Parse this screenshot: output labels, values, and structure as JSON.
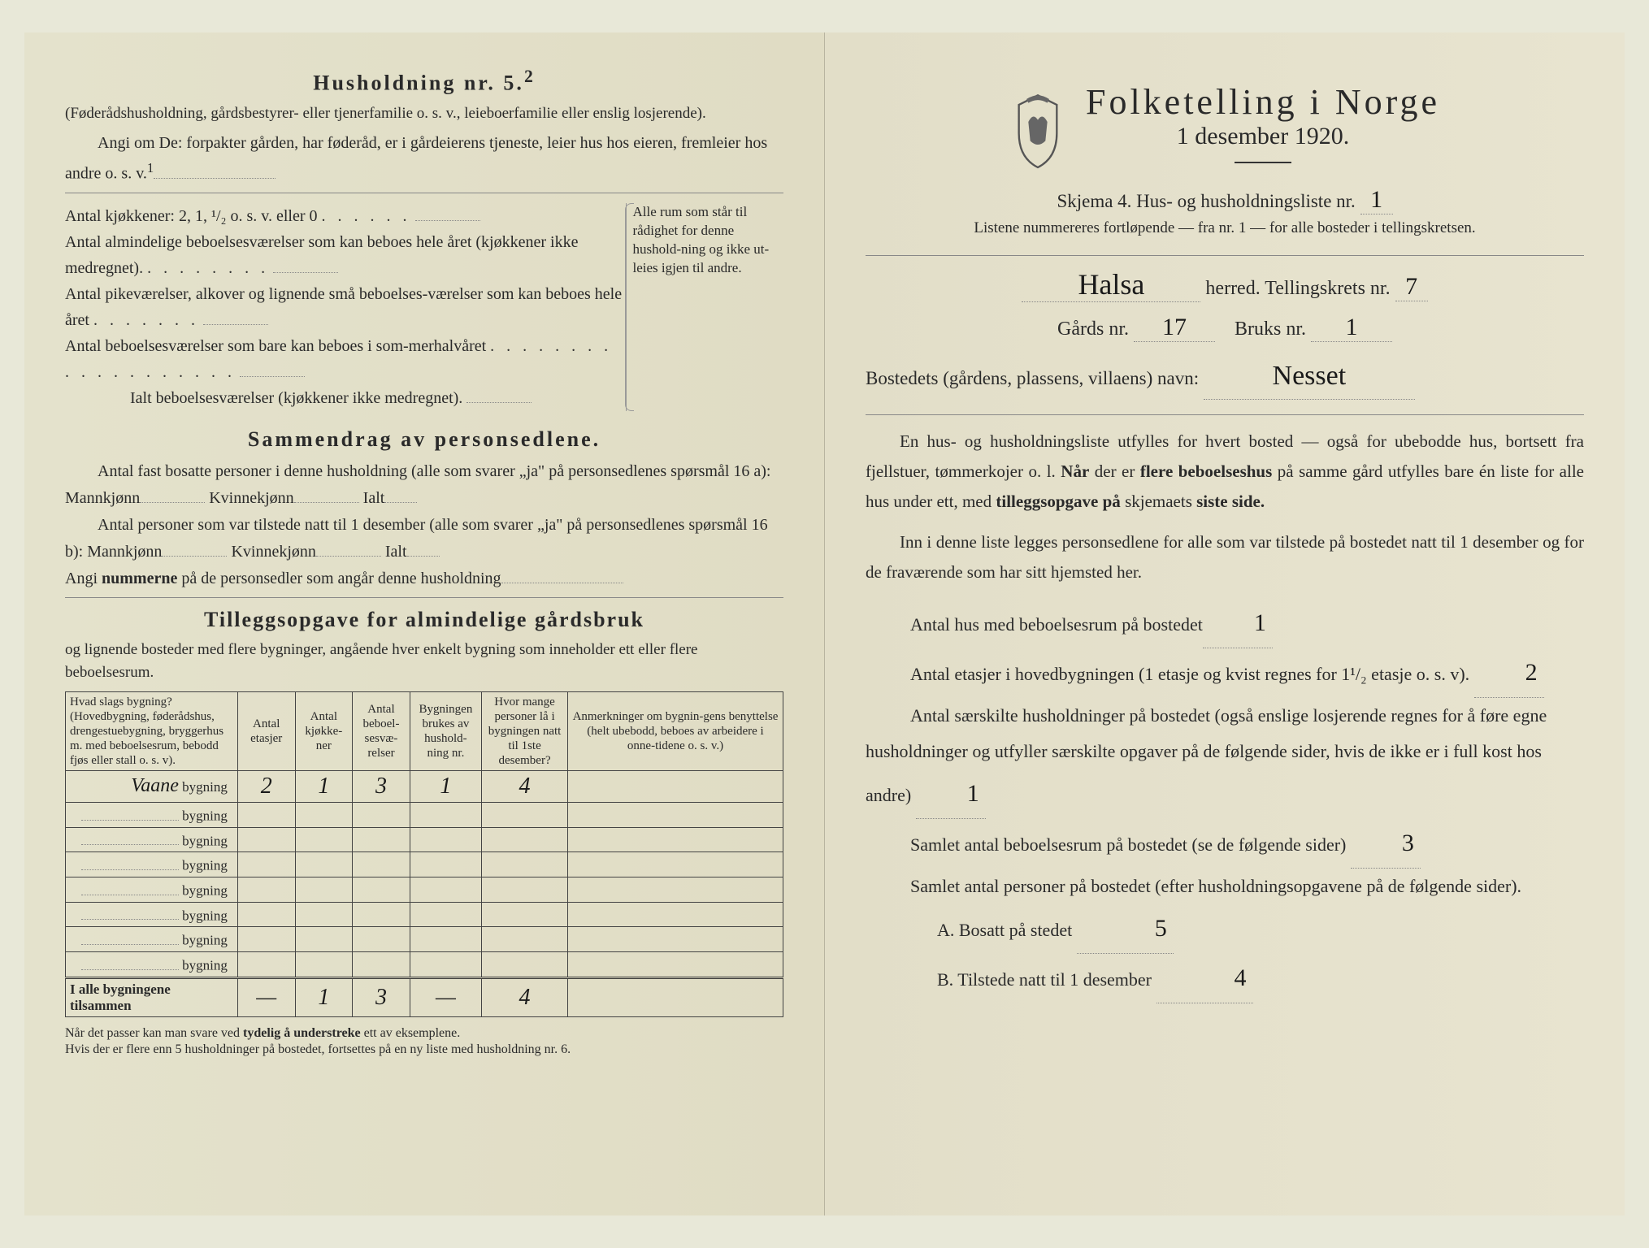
{
  "left": {
    "heading5": "Husholdning nr. 5.",
    "heading5_sup": "2",
    "note5": "(Føderådshusholdning, gårdsbestyrer- eller tjenerfamilie o. s. v., leieboerfamilie eller enslig losjerende).",
    "angi": "Angi om De:  forpakter gården, har føderåd, er i gårdeierens tjeneste, leier hus hos eieren, fremleier hos andre o. s. v.",
    "angi_sup": "1",
    "kitchens_label": "Antal kjøkkener: 2, 1, ¹/₂ o. s. v. eller 0",
    "rooms_a": "Antal almindelige beboelsesværelser som kan beboes hele året (kjøkkener ikke medregnet).",
    "rooms_b": "Antal pikeværelser, alkover og lignende små beboelses-værelser som kan beboes hele året",
    "rooms_c": "Antal beboelsesværelser som bare kan beboes i som-merhalvåret",
    "rooms_total": "Ialt beboelsesværelser  (kjøkkener ikke medregnet).",
    "rooms_side": "Alle rum som står til rådighet for denne hushold-ning og ikke ut-leies igjen til andre.",
    "sammendrag_title": "Sammendrag av personsedlene.",
    "sammendrag_a": "Antal fast bosatte personer i denne husholdning (alle som svarer „ja\" på personsedlenes spørsmål 16 a): Mannkjønn",
    "sammendrag_kvinne": "Kvinnekjønn",
    "sammendrag_ialt": "Ialt",
    "sammendrag_b": "Antal personer som var tilstede natt til 1 desember (alle som svarer „ja\" på personsedlenes spørsmål 16 b): Mannkjønn",
    "angi_nummer": "Angi nummerne på de personsedler som angår denne husholdning",
    "tillegg_title": "Tilleggsopgave for almindelige gårdsbruk",
    "tillegg_sub": "og lignende bosteder med flere bygninger, angående hver enkelt bygning som inneholder ett eller flere beboelsesrum.",
    "table": {
      "cols": [
        "Hvad slags bygning?\n(Hovedbygning, føderådshus, drengestuebygning, bryggerhus m. med beboelsesrum, bebodd fjøs eller stall o. s. v).",
        "Antal etasjer",
        "Antal kjøkke-ner",
        "Antal beboel-sesvæ-relser",
        "Bygningen brukes av hushold-ning nr.",
        "Hvor mange personer lå i bygningen natt til 1ste desember?",
        "Anmerkninger om bygnin-gens benyttelse (helt ubebodd, beboes av arbeidere i onne-tidene o. s. v.)"
      ],
      "row1": {
        "name_hand": "Vaane",
        "suffix": "bygning",
        "etasjer": "2",
        "kjokkener": "1",
        "bebo": "3",
        "hush": "1",
        "pers": "4"
      },
      "rows_blank_suffix": "bygning",
      "sumrow_label": "I alle bygningene tilsammen",
      "sumrow": {
        "etasjer": "—",
        "kjokkener": "1",
        "bebo": "3",
        "hush": "—",
        "pers": "4"
      }
    },
    "footnote": "Når det passer kan man svare ved tydelig å understreke ett av eksemplene.\nHvis der er flere enn 5 husholdninger på bostedet, fortsettes på en ny liste med husholdning nr. 6."
  },
  "right": {
    "title": "Folketelling  i  Norge",
    "date": "1 desember 1920.",
    "skjema": "Skjema 4.   Hus- og husholdningsliste nr.",
    "skjema_val": "1",
    "listene": "Listene nummereres fortløpende — fra nr. 1 — for alle bosteder i tellingskretsen.",
    "herred_hand": "Halsa",
    "herred_label": "herred.   Tellingskrets nr.",
    "krets_val": "7",
    "gards_label": "Gårds nr.",
    "gards_val": "17",
    "bruks_label": "Bruks nr.",
    "bruks_val": "1",
    "bosted_label": "Bostedets (gårdens, plassens, villaens) navn:",
    "bosted_val": "Nesset",
    "para1": "En hus- og husholdningsliste utfylles for hvert bosted — også for ubebodde hus, bortsett fra fjellstuer, tømmerkojer o. l.  Når der er flere beboelseshus på samme gård utfylles bare én liste for alle hus under ett, med tilleggsopgave på skjemaets siste side.",
    "para2": "Inn i denne liste legges personsedlene for alle som var tilstede på bostedet natt til 1 desember og for de fraværende som har sitt hjemsted her.",
    "l1": "Antal hus med beboelsesrum på bostedet",
    "l1_val": "1",
    "l2a": "Antal etasjer i hovedbygningen (1 etasje og kvist regnes for 1¹/₂ etasje o. s. v).",
    "l2_val": "2",
    "l3": "Antal særskilte husholdninger på bostedet (også enslige losjerende regnes for å føre egne husholdninger og utfyller særskilte opgaver på de følgende sider, hvis de ikke er i full kost hos andre)",
    "l3_val": "1",
    "l4": "Samlet antal beboelsesrum på bostedet (se de følgende sider)",
    "l4_val": "3",
    "l5": "Samlet antal personer på bostedet (efter husholdningsopgavene på de følgende sider).",
    "lA": "A.  Bosatt på stedet",
    "lA_val": "5",
    "lB": "B.  Tilstede natt til 1 desember",
    "lB_val": "4"
  }
}
